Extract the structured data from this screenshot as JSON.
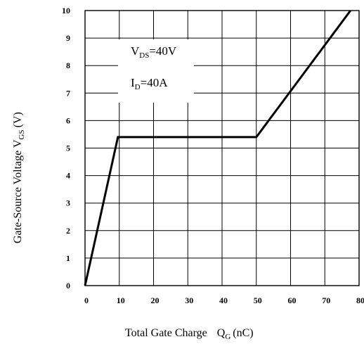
{
  "chart_data": {
    "type": "line",
    "title": "",
    "xlabel": {
      "main": "Total Gate Charge",
      "sym": "Q",
      "sub": "G",
      "unit": "(nC)"
    },
    "ylabel": {
      "main": "Gate-Source Voltage V",
      "sub": "GS",
      "unit": "(V)"
    },
    "xlim": [
      0,
      80
    ],
    "ylim": [
      0,
      10
    ],
    "x_ticks": [
      0,
      10,
      20,
      30,
      40,
      50,
      60,
      70,
      80
    ],
    "y_ticks": [
      0,
      1,
      2,
      3,
      4,
      5,
      6,
      7,
      8,
      9,
      10
    ],
    "x_tick_labels": [
      "0",
      "10",
      "20",
      "30",
      "40",
      "50",
      "60",
      "70",
      "80"
    ],
    "y_tick_labels": [
      "0",
      "1",
      "2",
      "3",
      "4",
      "5",
      "6",
      "7",
      "8",
      "9",
      "10"
    ],
    "grid": true,
    "series": [
      {
        "x": [
          0,
          9.6,
          50,
          77.5
        ],
        "y": [
          0,
          5.4,
          5.4,
          10
        ]
      }
    ],
    "annotations": [
      {
        "main": "V",
        "sub": "DS",
        "rest": "=40V"
      },
      {
        "main": "I",
        "sub": "D",
        "rest": "=40A"
      }
    ]
  }
}
